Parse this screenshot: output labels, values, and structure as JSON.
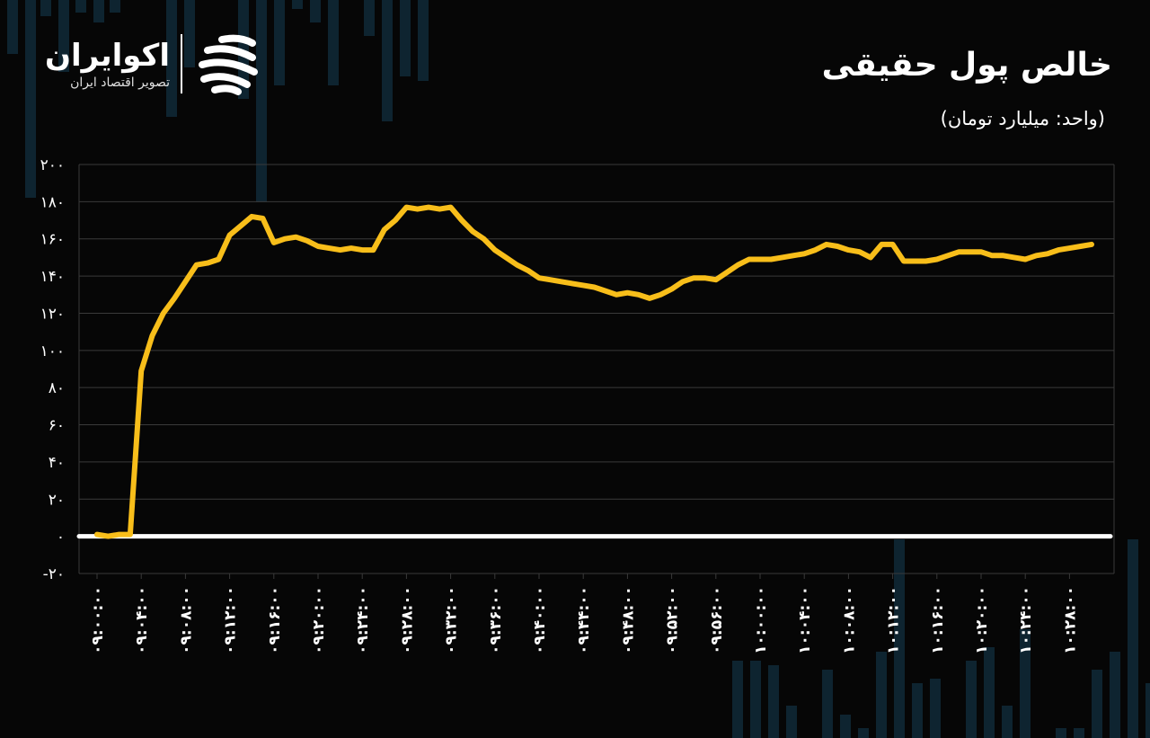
{
  "brand": {
    "name": "اکوایران",
    "tagline": "تصویر اقتصاد ایران",
    "mark_icon": "ecoiran-logo-icon"
  },
  "title": "خالص پول حقیقی",
  "subtitle": "(واحد: میلیارد تومان)",
  "colors": {
    "background": "#060606",
    "line": "#F8BE1A",
    "zero_line": "#FFFFFF",
    "grid": "#3A3A3A",
    "background_candles": "#0E2430"
  },
  "chart_data": {
    "type": "line",
    "title": "خالص پول حقیقی",
    "xlabel": "",
    "ylabel": "",
    "ylim": [
      -20,
      200
    ],
    "y_ticks": [
      -20,
      0,
      20,
      40,
      60,
      80,
      100,
      120,
      140,
      160,
      180,
      200
    ],
    "y_tick_labels": [
      "-۲۰",
      "۰",
      "۲۰",
      "۴۰",
      "۶۰",
      "۸۰",
      "۱۰۰",
      "۱۲۰",
      "۱۴۰",
      "۱۶۰",
      "۱۸۰",
      "۲۰۰"
    ],
    "x_tick_labels": [
      "۰۹:۰۰:۰۰",
      "۰۹:۰۴:۰۰",
      "۰۹:۰۸:۰۰",
      "۰۹:۱۲:۰۰",
      "۰۹:۱۶:۰۰",
      "۰۹:۲۰:۰۰",
      "۰۹:۲۴:۰۰",
      "۰۹:۲۸:۰۰",
      "۰۹:۳۲:۰۰",
      "۰۹:۳۶:۰۰",
      "۰۹:۴۰:۰۰",
      "۰۹:۴۴:۰۰",
      "۰۹:۴۸:۰۰",
      "۰۹:۵۲:۰۰",
      "۰۹:۵۶:۰۰",
      "۱۰:۰۰:۰۰",
      "۱۰:۰۴:۰۰",
      "۱۰:۰۸:۰۰",
      "۱۰:۱۲:۰۰",
      "۱۰:۱۶:۰۰",
      "۱۰:۲۰:۰۰",
      "۱۰:۲۴:۰۰",
      "۱۰:۲۸:۰۰"
    ],
    "grid": true,
    "legend": "none",
    "series": [
      {
        "x": [
          "09:00:00",
          "09:01:00",
          "09:02:00",
          "09:03:00",
          "09:04:00",
          "09:05:00",
          "09:06:00",
          "09:07:00",
          "09:08:00",
          "09:09:00",
          "09:10:00",
          "09:11:00",
          "09:12:00",
          "09:13:00",
          "09:14:00",
          "09:15:00",
          "09:16:00",
          "09:17:00",
          "09:18:00",
          "09:19:00",
          "09:20:00",
          "09:21:00",
          "09:22:00",
          "09:23:00",
          "09:24:00",
          "09:25:00",
          "09:26:00",
          "09:27:00",
          "09:28:00",
          "09:29:00",
          "09:30:00",
          "09:31:00",
          "09:32:00",
          "09:33:00",
          "09:34:00",
          "09:35:00",
          "09:36:00",
          "09:37:00",
          "09:38:00",
          "09:39:00",
          "09:40:00",
          "09:41:00",
          "09:42:00",
          "09:43:00",
          "09:44:00",
          "09:45:00",
          "09:46:00",
          "09:47:00",
          "09:48:00",
          "09:49:00",
          "09:50:00",
          "09:51:00",
          "09:52:00",
          "09:53:00",
          "09:54:00",
          "09:55:00",
          "09:56:00",
          "09:57:00",
          "09:58:00",
          "09:59:00",
          "10:00:00",
          "10:01:00",
          "10:02:00",
          "10:03:00",
          "10:04:00",
          "10:05:00",
          "10:06:00",
          "10:07:00",
          "10:08:00",
          "10:09:00",
          "10:10:00",
          "10:11:00",
          "10:12:00",
          "10:13:00",
          "10:14:00",
          "10:15:00",
          "10:16:00",
          "10:17:00",
          "10:18:00",
          "10:19:00",
          "10:20:00",
          "10:21:00",
          "10:22:00",
          "10:23:00",
          "10:24:00",
          "10:25:00",
          "10:26:00",
          "10:27:00",
          "10:28:00",
          "10:29:00",
          "10:30:00"
        ],
        "values": [
          1,
          0,
          1,
          1,
          89,
          108,
          120,
          128,
          137,
          146,
          147,
          149,
          162,
          167,
          172,
          171,
          158,
          160,
          161,
          159,
          156,
          155,
          154,
          155,
          154,
          154,
          165,
          170,
          177,
          176,
          177,
          176,
          177,
          170,
          164,
          160,
          154,
          150,
          146,
          143,
          139,
          138,
          137,
          136,
          135,
          134,
          132,
          130,
          131,
          130,
          128,
          130,
          133,
          137,
          139,
          139,
          138,
          142,
          146,
          149,
          149,
          149,
          150,
          151,
          152,
          154,
          157,
          156,
          154,
          153,
          150,
          157,
          157,
          148,
          148,
          148,
          149,
          151,
          153,
          153,
          153,
          151,
          151,
          150,
          149,
          151,
          152,
          154,
          155,
          156,
          157
        ]
      }
    ]
  }
}
